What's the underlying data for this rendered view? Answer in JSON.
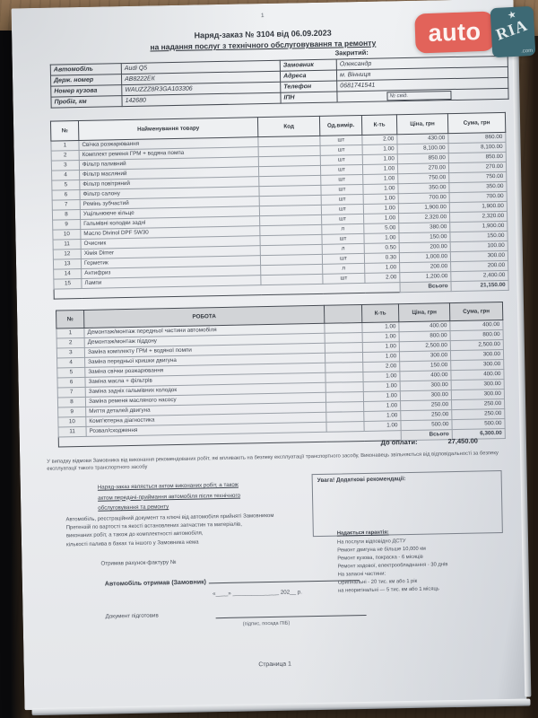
{
  "photo": {
    "page_top_number": "1"
  },
  "logo": {
    "auto_text": "auto",
    "ria_text": "RIA",
    "com_text": ".com",
    "star": "★"
  },
  "header": {
    "title_line1": "Наряд-заказ № 3104 від 06.09.2023",
    "title_line2": "на надання послуг з технічного обслуговування та ремонту",
    "closed_label": "Закритий:"
  },
  "vehicle_info": {
    "rows": [
      [
        "Автомобіль",
        "Audi Q5",
        "Замовник",
        "Олександр"
      ],
      [
        "Держ. номер",
        "АВ8222ЕК",
        "Адреса",
        "м. Вінниця"
      ],
      [
        "Номер кузова",
        "WAUZZZ8R3GA103306",
        "Телефон",
        "0681741541"
      ],
      [
        "Пробіг, км",
        "142680",
        "ІПН",
        ""
      ]
    ],
    "cert_label": "№ свід."
  },
  "goods_table": {
    "headers": [
      "№",
      "Найменування товару",
      "Код",
      "Од.вимір.",
      "К-ть",
      "Ціна, грн",
      "Сума, грн"
    ],
    "rows": [
      [
        "1",
        "Свічка розжарювання",
        "",
        "шт",
        "2.00",
        "430.00",
        "860.00"
      ],
      [
        "2",
        "Комплект ременя ГРМ + водяна помпа",
        "",
        "шт",
        "1.00",
        "8,100.00",
        "8,100.00"
      ],
      [
        "3",
        "Фільтр паливний",
        "",
        "шт",
        "1.00",
        "850.00",
        "850.00"
      ],
      [
        "4",
        "Фільтр масляний",
        "",
        "шт",
        "1.00",
        "270.00",
        "270.00"
      ],
      [
        "5",
        "Фільтр повітряний",
        "",
        "шт",
        "1.00",
        "750.00",
        "750.00"
      ],
      [
        "6",
        "Фільтр салону",
        "",
        "шт",
        "1.00",
        "350.00",
        "350.00"
      ],
      [
        "7",
        "Ремінь зубчастий",
        "",
        "шт",
        "1.00",
        "700.00",
        "700.00"
      ],
      [
        "8",
        "Ущільнююче кільце",
        "",
        "шт",
        "1.00",
        "1,900.00",
        "1,900.00"
      ],
      [
        "9",
        "Гальмівні колодки задні",
        "",
        "шт",
        "1.00",
        "2,320.00",
        "2,320.00"
      ],
      [
        "10",
        "Масло Divinol DPF 5W30",
        "",
        "л",
        "5.00",
        "380.00",
        "1,900.00"
      ],
      [
        "11",
        "Очисник",
        "",
        "шт",
        "1.00",
        "150.00",
        "150.00"
      ],
      [
        "12",
        "Хімія Dimer",
        "",
        "л",
        "0.50",
        "200.00",
        "100.00"
      ],
      [
        "13",
        "Герметик",
        "",
        "шт",
        "0.30",
        "1,000.00",
        "300.00"
      ],
      [
        "14",
        "Антифриз",
        "",
        "л",
        "1.00",
        "200.00",
        "200.00"
      ],
      [
        "15",
        "Лампи",
        "",
        "шт",
        "2.00",
        "1,200.00",
        "2,400.00"
      ]
    ],
    "total_label": "Всього",
    "total_value": "21,150.00"
  },
  "works_table": {
    "headers": [
      "№",
      "РОБОТА",
      "",
      "К-ть",
      "Ціна, грн",
      "Сума, грн"
    ],
    "rows": [
      [
        "1",
        "Демонтаж/монтаж передньої частини автомобіля",
        "",
        "1.00",
        "400.00",
        "400.00"
      ],
      [
        "2",
        "Демонтаж/монтаж піддону",
        "",
        "1.00",
        "800.00",
        "800.00"
      ],
      [
        "3",
        "Заміна комплекту ГРМ + водяної помпи",
        "",
        "1.00",
        "2,500.00",
        "2,500.00"
      ],
      [
        "4",
        "Заміна передньої кришки двигуна",
        "",
        "1.00",
        "300.00",
        "300.00"
      ],
      [
        "5",
        "Заміна свічки розжарювання",
        "",
        "2.00",
        "150.00",
        "300.00"
      ],
      [
        "6",
        "Заміна масла + фільтрів",
        "",
        "1.00",
        "400.00",
        "400.00"
      ],
      [
        "7",
        "Заміна задніх гальмівних колодок",
        "",
        "1.00",
        "300.00",
        "300.00"
      ],
      [
        "8",
        "Заміна ременя масляного насосу",
        "",
        "1.00",
        "300.00",
        "300.00"
      ],
      [
        "9",
        "Миття деталей двигуна",
        "",
        "1.00",
        "250.00",
        "250.00"
      ],
      [
        "10",
        "Комп'ютерна діагностика",
        "",
        "1.00",
        "250.00",
        "250.00"
      ],
      [
        "11",
        "Розвал/сходження",
        "",
        "1.00",
        "500.00",
        "500.00"
      ]
    ],
    "total_label": "Всього",
    "total_value": "6,300.00"
  },
  "payment": {
    "label": "До оплати:",
    "value": "27,450.00"
  },
  "notes": {
    "disclaimer": "У випадку відмови Замовника від виконання рекомендованих робіт, які впливають на безпеку експлуатації транспортного засобу, Виконавець звільняється від відповідальності за безпеку експлуатації такого транспортного засобу",
    "act_lines": [
      "Наряд-заказ являється актом виконаних робіт, а також",
      "актом передачі-приймання автомобіля після технічного",
      "обслуговування та ремонту"
    ],
    "attention_label": "Увага! Додаткові рекомендації:",
    "acceptance_lines": [
      "Автомобіль, реєстраційний документ та ключі від автомобіля прийняті Замовником",
      "Претензій по вартості та якості встановлених запчастин та матеріалів,",
      "виконаних робіт, а також до комплектності автомобіля,",
      "кількості палива в баках та іншого у Замовника нема"
    ],
    "invoice_line": "Отримав рахунок-фактуру №"
  },
  "warranty": {
    "title": "Надається гарантія:",
    "lines": [
      "На послуги відповідно ДСТУ",
      "Ремонт двигуна не більше 10,000 км",
      "Ремонт кузова, покраска - 6 місяців",
      "Ремонт ходової, електрообладнання - 30 днів",
      "На запасні частини:",
      "Оригінальні - 20 тис. км або 1 рік",
      "на неоригінальні — 5 тис. км або 1 місяць"
    ]
  },
  "signing": {
    "received_label": "Автомобіль отримав (Замовник)",
    "date_line": "«____» _______________ 202__ р.",
    "prepared_label": "Документ підготовив",
    "signature_caption": "(підпис, посада ПІБ)"
  },
  "footer": {
    "page_label": "Страница 1"
  },
  "colors": {
    "logo_red": "#e2635a",
    "logo_teal": "#3d6974",
    "paper": "#edeff1",
    "ink": "#3c414a"
  }
}
